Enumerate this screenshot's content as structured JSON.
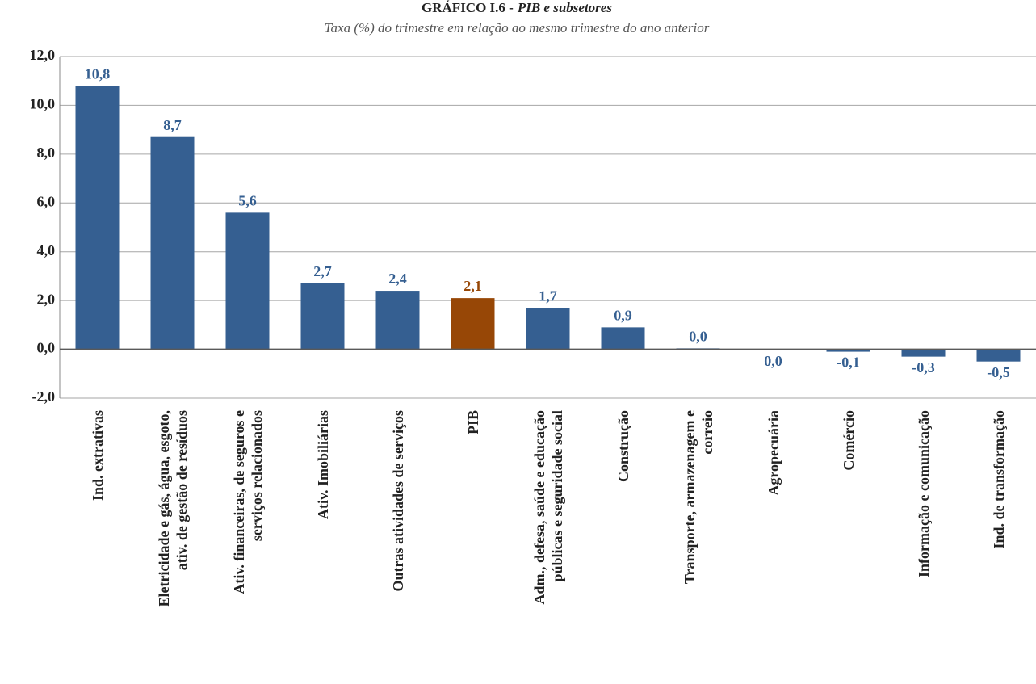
{
  "chart_data": {
    "type": "bar",
    "title": [
      "GRÁFICO I.6 -",
      "PIB e subsetores"
    ],
    "subtitle": "Taxa (%) do trimestre em relação ao mesmo trimestre do ano anterior",
    "categories": [
      "Ind. extrativas",
      "Eletricidade e gás, água, esgoto,\nativ. de gestão de resíduos",
      "Ativ. financeiras, de seguros e\nserviços relacionados",
      "Ativ. Imobiliárias",
      "Outras atividades de serviços",
      "PIB",
      "Adm., defesa, saúde e educação\npúblicas e seguridade social",
      "Construção",
      "Transporte, armazenagem e\ncorreio",
      "Agropecuária",
      "Comércio",
      "Informação e comunicação",
      "Ind. de transformação"
    ],
    "values": [
      10.8,
      8.7,
      5.6,
      2.7,
      2.4,
      2.1,
      1.7,
      0.9,
      0.04,
      -0.04,
      -0.1,
      -0.3,
      -0.5
    ],
    "value_labels": [
      "10,8",
      "8,7",
      "5,6",
      "2,7",
      "2,4",
      "2,1",
      "1,7",
      "0,9",
      "0,0",
      "0,0",
      "-0,1",
      "-0,3",
      "-0,5"
    ],
    "colors": [
      "#355f91",
      "#355f91",
      "#355f91",
      "#355f91",
      "#355f91",
      "#974706",
      "#355f91",
      "#355f91",
      "#355f91",
      "#355f91",
      "#355f91",
      "#355f91",
      "#355f91"
    ],
    "ylim": [
      -2,
      12
    ],
    "yticks": [
      {
        "value": -2,
        "label": "-2,0"
      },
      {
        "value": 0,
        "label": "0,0"
      },
      {
        "value": 2,
        "label": "2,0"
      },
      {
        "value": 4,
        "label": "4,0"
      },
      {
        "value": 6,
        "label": "6,0"
      },
      {
        "value": 8,
        "label": "8,0"
      },
      {
        "value": 10,
        "label": "10,0"
      },
      {
        "value": 12,
        "label": "12,0"
      }
    ],
    "grid": true
  }
}
